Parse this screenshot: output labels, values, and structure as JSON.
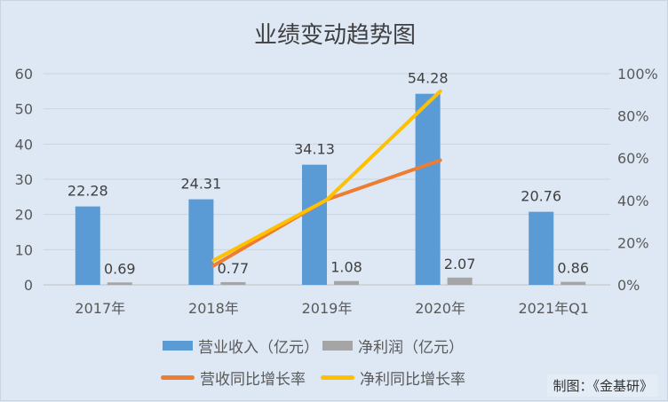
{
  "chart_data": {
    "type": "bar+line",
    "title": "业绩变动趋势图",
    "categories": [
      "2017年",
      "2018年",
      "2019年",
      "2020年",
      "2021年Q1"
    ],
    "left_axis": {
      "ylim": [
        0,
        60
      ],
      "ticks": [
        0,
        10,
        20,
        30,
        40,
        50,
        60
      ]
    },
    "right_axis": {
      "ylim": [
        0,
        100
      ],
      "ticks": [
        "0%",
        "20%",
        "40%",
        "60%",
        "80%",
        "100%"
      ]
    },
    "grid": true,
    "legend_placement": "bottom",
    "series": [
      {
        "name": "营业收入（亿元）",
        "type": "bar",
        "axis": "left",
        "color": "#5b9bd5",
        "values": [
          22.28,
          24.31,
          34.13,
          54.28,
          20.76
        ],
        "labels": [
          "22.28",
          "24.31",
          "34.13",
          "54.28",
          "20.76"
        ]
      },
      {
        "name": "净利润（亿元）",
        "type": "bar",
        "axis": "left",
        "color": "#a5a5a5",
        "values": [
          0.69,
          0.77,
          1.08,
          2.07,
          0.86
        ],
        "labels": [
          "0.69",
          "0.77",
          "1.08",
          "2.07",
          "0.86"
        ]
      },
      {
        "name": "营收同比增长率",
        "type": "line",
        "axis": "right",
        "color": "#ed7d31",
        "values": [
          null,
          9.1,
          40.4,
          59.0,
          null
        ]
      },
      {
        "name": "净利同比增长率",
        "type": "line",
        "axis": "right",
        "color": "#ffc000",
        "values": [
          null,
          11.6,
          40.3,
          91.7,
          null
        ]
      }
    ]
  },
  "credit": "制图：《金基研》"
}
